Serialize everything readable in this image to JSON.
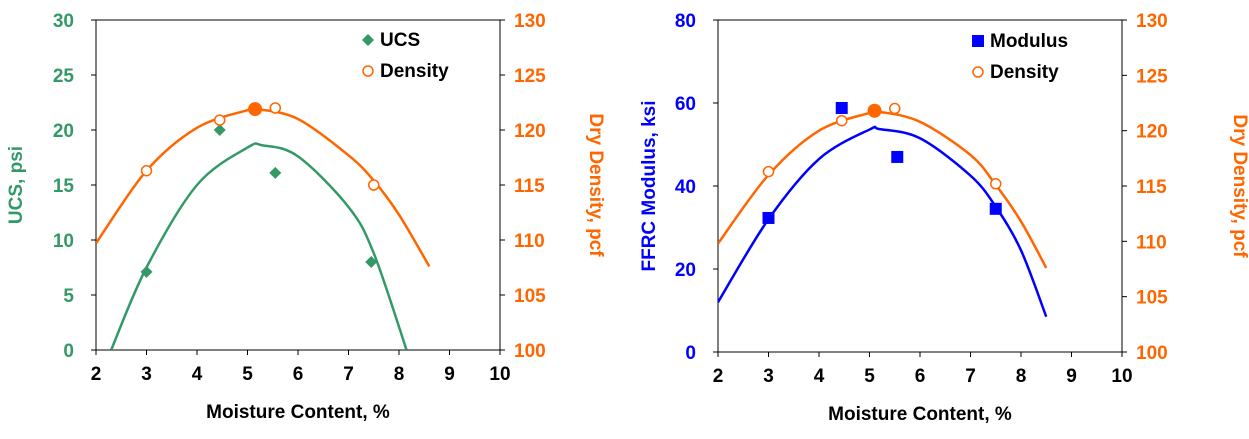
{
  "chart_data": [
    {
      "type": "scatter",
      "title": "",
      "xlabel": "Moisture Content, %",
      "ylabel": "UCS, psi",
      "y2label": "Dry Density, pcf",
      "xlim": [
        2,
        10
      ],
      "ylim": [
        0,
        30
      ],
      "y2lim": [
        100,
        130
      ],
      "xticks": [
        "2",
        "3",
        "4",
        "5",
        "6",
        "7",
        "8",
        "9",
        "10"
      ],
      "yticks": [
        "0",
        "5",
        "10",
        "15",
        "20",
        "25",
        "30"
      ],
      "y2ticks": [
        "100",
        "105",
        "110",
        "115",
        "120",
        "125",
        "130"
      ],
      "grid": false,
      "legend_position": "top-right",
      "colors": {
        "primary": "#339966",
        "secondary": "#ff6600"
      },
      "series": [
        {
          "name": "UCS",
          "axis": "left",
          "marker": "diamond-filled",
          "x": [
            3.0,
            4.45,
            5.55,
            7.45
          ],
          "y": [
            7.1,
            20.0,
            16.1,
            8.0
          ]
        },
        {
          "name": "Density",
          "axis": "right",
          "marker": "circle-open",
          "x": [
            3.0,
            4.45,
            5.55,
            7.5
          ],
          "y": [
            116.3,
            120.9,
            122.0,
            115.0
          ]
        },
        {
          "axis": "left",
          "kind": "fit-line",
          "x": [
            2.3,
            3.0,
            4.0,
            5.0,
            5.3,
            6.0,
            7.0,
            7.5,
            8.15
          ],
          "y": [
            0.0,
            7.5,
            15.0,
            18.4,
            18.6,
            17.6,
            13.0,
            8.8,
            0.0
          ]
        },
        {
          "axis": "right",
          "kind": "fit-line",
          "x": [
            2.0,
            3.0,
            4.0,
            5.0,
            5.2,
            6.0,
            7.0,
            7.5,
            8.0,
            8.6
          ],
          "y": [
            109.7,
            116.3,
            120.2,
            121.8,
            121.9,
            121.0,
            117.7,
            115.4,
            112.3,
            107.6
          ]
        },
        {
          "axis": "right",
          "kind": "optimum",
          "marker": "circle-filled",
          "x": [
            5.15
          ],
          "y": [
            121.9
          ]
        }
      ]
    },
    {
      "type": "scatter",
      "title": "",
      "xlabel": "Moisture Content, %",
      "ylabel": "FFRC Modulus, ksi",
      "y2label": "Dry Density, pcf",
      "xlim": [
        2,
        10
      ],
      "ylim": [
        0,
        80
      ],
      "y2lim": [
        100,
        130
      ],
      "xticks": [
        "2",
        "3",
        "4",
        "5",
        "6",
        "7",
        "8",
        "9",
        "10"
      ],
      "yticks": [
        "0",
        "20",
        "40",
        "60",
        "80"
      ],
      "y2ticks": [
        "100",
        "105",
        "110",
        "115",
        "120",
        "125",
        "130"
      ],
      "grid": false,
      "legend_position": "top-right",
      "colors": {
        "primary": "#0000ff",
        "secondary": "#ff6600"
      },
      "series": [
        {
          "name": "Modulus",
          "axis": "left",
          "marker": "square-filled",
          "x": [
            3.0,
            4.45,
            5.55,
            7.5
          ],
          "y": [
            32.3,
            58.8,
            47.0,
            34.5
          ]
        },
        {
          "name": "Density",
          "axis": "right",
          "marker": "circle-open",
          "x": [
            3.0,
            4.45,
            5.5,
            7.5
          ],
          "y": [
            116.3,
            120.9,
            122.0,
            115.2
          ]
        },
        {
          "axis": "left",
          "kind": "fit-line",
          "x": [
            2.0,
            3.0,
            4.0,
            5.0,
            5.2,
            6.0,
            7.0,
            7.5,
            8.0,
            8.5
          ],
          "y": [
            12.0,
            32.0,
            46.5,
            53.6,
            53.7,
            51.5,
            42.5,
            35.0,
            24.5,
            8.5
          ]
        },
        {
          "axis": "right",
          "kind": "fit-line",
          "x": [
            2.0,
            3.0,
            4.0,
            5.0,
            5.2,
            6.0,
            7.0,
            7.5,
            8.0,
            8.5
          ],
          "y": [
            109.8,
            116.0,
            120.0,
            121.6,
            121.7,
            120.8,
            117.8,
            115.1,
            111.8,
            107.6
          ]
        },
        {
          "axis": "right",
          "kind": "optimum",
          "marker": "circle-filled",
          "x": [
            5.1
          ],
          "y": [
            121.8
          ]
        }
      ]
    }
  ]
}
